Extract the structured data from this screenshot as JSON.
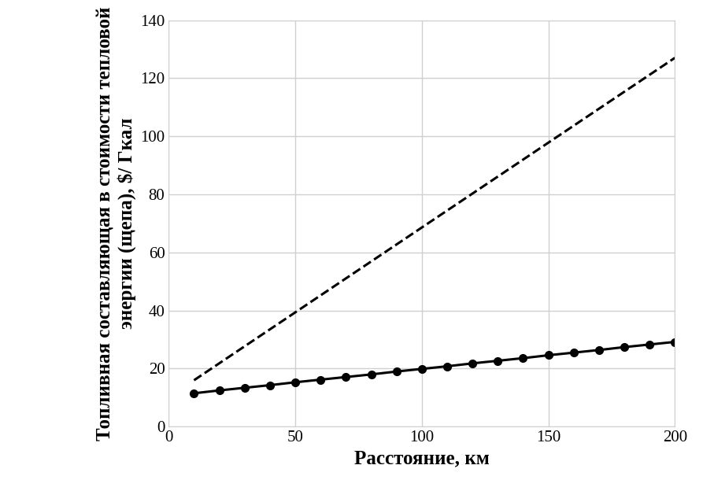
{
  "chart_data": {
    "type": "line",
    "x_label": "Расстояние, км",
    "y_label": "Топливная составляющая в стоимости тепловой энергии (щепа), $/ Гкал",
    "xlim": [
      0,
      200
    ],
    "xticks": [
      0,
      50,
      100,
      150,
      200
    ],
    "ylim": [
      0,
      140
    ],
    "yticks": [
      0,
      20,
      40,
      60,
      80,
      100,
      120,
      140
    ],
    "grid": true,
    "series": [
      {
        "color": "#000000",
        "line_style": "dashed",
        "marker": "none",
        "x": [
          10,
          200
        ],
        "values": [
          16,
          127
        ]
      },
      {
        "color": "#000000",
        "line_style": "solid",
        "marker": "circle",
        "x": [
          10,
          20,
          30,
          40,
          50,
          60,
          70,
          80,
          90,
          100,
          110,
          120,
          130,
          140,
          150,
          160,
          170,
          180,
          190,
          200
        ],
        "values": [
          11.5,
          12.5,
          13.4,
          14.3,
          15.3,
          16.2,
          17.1,
          18.0,
          19.0,
          19.9,
          20.8,
          21.8,
          22.7,
          23.6,
          24.6,
          25.5,
          26.4,
          27.4,
          28.3,
          29.2
        ]
      }
    ]
  }
}
